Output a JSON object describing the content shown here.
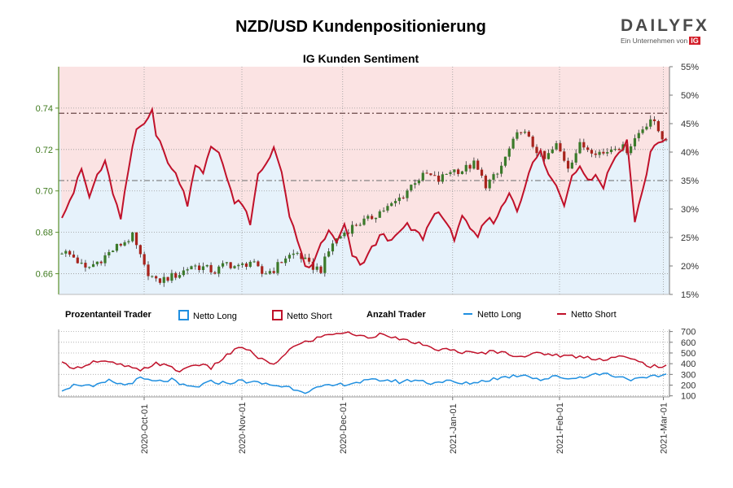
{
  "header": {
    "title": "NZD/USD Kundenpositionierung",
    "subtitle": "IG Kunden Sentiment",
    "logo_word": "DAILYFX",
    "logo_tagline": "Ein Unternehmen von",
    "logo_ig": "IG"
  },
  "legend": {
    "group1_title": "Prozentanteil Trader",
    "netto_long_pct": "Netto Long",
    "netto_short_pct": "Netto Short",
    "group2_title": "Anzahl Trader",
    "netto_long_count": "Netto Long",
    "netto_short_count": "Netto Short"
  },
  "colors": {
    "long": "#1f8fe0",
    "short": "#c0112a",
    "up_candle": "#3b7a2a",
    "down_candle": "#a8231c",
    "short_fill": "#fbe3e3",
    "long_fill": "#e6f2fb"
  },
  "chart_data": [
    {
      "type": "candlestick",
      "yaxis_left": {
        "ticks": [
          "0.66",
          "0.68",
          "0.70",
          "0.72",
          "0.74"
        ],
        "range": [
          0.65,
          0.76
        ]
      },
      "yaxis_right": {
        "ticks": [
          "15%",
          "20%",
          "25%",
          "30%",
          "35%",
          "40%",
          "45%",
          "50%",
          "55%"
        ],
        "range": [
          15,
          55
        ]
      },
      "x_tick_labels": [
        "2020-Oct-01",
        "2020-Nov-01",
        "2020-Dec-01",
        "2021-Jan-01",
        "2021-Feb-01",
        "2021-Mar-01"
      ],
      "reference_lines": {
        "price_level": 0.7375,
        "pct_level": 35
      },
      "price_anchors": [
        [
          0,
          0.671
        ],
        [
          3,
          0.668
        ],
        [
          6,
          0.662
        ],
        [
          10,
          0.667
        ],
        [
          14,
          0.673
        ],
        [
          18,
          0.678
        ],
        [
          21,
          0.663
        ],
        [
          24,
          0.656
        ],
        [
          27,
          0.658
        ],
        [
          30,
          0.66
        ],
        [
          33,
          0.664
        ],
        [
          36,
          0.663
        ],
        [
          39,
          0.661
        ],
        [
          42,
          0.665
        ],
        [
          45,
          0.663
        ],
        [
          48,
          0.666
        ],
        [
          51,
          0.66
        ],
        [
          54,
          0.662
        ],
        [
          57,
          0.668
        ],
        [
          60,
          0.67
        ],
        [
          63,
          0.664
        ],
        [
          66,
          0.662
        ],
        [
          69,
          0.675
        ],
        [
          72,
          0.68
        ],
        [
          75,
          0.684
        ],
        [
          78,
          0.686
        ],
        [
          81,
          0.69
        ],
        [
          84,
          0.693
        ],
        [
          87,
          0.698
        ],
        [
          90,
          0.705
        ],
        [
          93,
          0.708
        ],
        [
          96,
          0.705
        ],
        [
          99,
          0.71
        ],
        [
          102,
          0.71
        ],
        [
          105,
          0.713
        ],
        [
          108,
          0.703
        ],
        [
          111,
          0.708
        ],
        [
          114,
          0.72
        ],
        [
          117,
          0.73
        ],
        [
          120,
          0.722
        ],
        [
          123,
          0.715
        ],
        [
          126,
          0.722
        ],
        [
          129,
          0.712
        ],
        [
          132,
          0.722
        ],
        [
          135,
          0.72
        ],
        [
          138,
          0.718
        ],
        [
          141,
          0.722
        ],
        [
          144,
          0.72
        ],
        [
          147,
          0.728
        ],
        [
          150,
          0.735
        ],
        [
          153,
          0.726
        ],
        [
          154,
          0.726
        ]
      ],
      "pct_short_anchors": [
        [
          0,
          29
        ],
        [
          3,
          33
        ],
        [
          5,
          37
        ],
        [
          7,
          32
        ],
        [
          9,
          36
        ],
        [
          11,
          38
        ],
        [
          13,
          33
        ],
        [
          15,
          28
        ],
        [
          17,
          37
        ],
        [
          19,
          44
        ],
        [
          21,
          45
        ],
        [
          23,
          48
        ],
        [
          24,
          43
        ],
        [
          26,
          40
        ],
        [
          28,
          37
        ],
        [
          30,
          35
        ],
        [
          32,
          31
        ],
        [
          34,
          38
        ],
        [
          36,
          36
        ],
        [
          38,
          41
        ],
        [
          40,
          40
        ],
        [
          42,
          36
        ],
        [
          44,
          31
        ],
        [
          46,
          31
        ],
        [
          48,
          27
        ],
        [
          50,
          36
        ],
        [
          52,
          38
        ],
        [
          54,
          41
        ],
        [
          56,
          36
        ],
        [
          58,
          29
        ],
        [
          60,
          24
        ],
        [
          62,
          20
        ],
        [
          64,
          20
        ],
        [
          66,
          24
        ],
        [
          68,
          26
        ],
        [
          70,
          24
        ],
        [
          72,
          27
        ],
        [
          74,
          22
        ],
        [
          76,
          20
        ],
        [
          78,
          22
        ],
        [
          80,
          24
        ],
        [
          82,
          26
        ],
        [
          84,
          24
        ],
        [
          86,
          26
        ],
        [
          88,
          27
        ],
        [
          90,
          26
        ],
        [
          92,
          25
        ],
        [
          94,
          28
        ],
        [
          96,
          30
        ],
        [
          98,
          27
        ],
        [
          100,
          25
        ],
        [
          102,
          29
        ],
        [
          104,
          26
        ],
        [
          106,
          25
        ],
        [
          108,
          28
        ],
        [
          110,
          28
        ],
        [
          112,
          30
        ],
        [
          114,
          33
        ],
        [
          116,
          30
        ],
        [
          118,
          34
        ],
        [
          120,
          38
        ],
        [
          122,
          40
        ],
        [
          124,
          36
        ],
        [
          126,
          34
        ],
        [
          128,
          31
        ],
        [
          130,
          36
        ],
        [
          132,
          38
        ],
        [
          134,
          35
        ],
        [
          136,
          36
        ],
        [
          138,
          34
        ],
        [
          140,
          38
        ],
        [
          142,
          40
        ],
        [
          144,
          42
        ],
        [
          146,
          28
        ],
        [
          148,
          33
        ],
        [
          150,
          40
        ],
        [
          152,
          42
        ],
        [
          154,
          42
        ]
      ]
    },
    {
      "type": "line",
      "yaxis_right": {
        "ticks": [
          "100",
          "200",
          "300",
          "400",
          "500",
          "600",
          "700"
        ],
        "range": [
          90,
          720
        ]
      },
      "series": [
        {
          "name": "Netto Long",
          "anchors": [
            [
              0,
              160
            ],
            [
              4,
              210
            ],
            [
              8,
              180
            ],
            [
              12,
              240
            ],
            [
              16,
              200
            ],
            [
              20,
              260
            ],
            [
              24,
              230
            ],
            [
              28,
              250
            ],
            [
              30,
              200
            ],
            [
              34,
              180
            ],
            [
              38,
              230
            ],
            [
              42,
              220
            ],
            [
              46,
              240
            ],
            [
              50,
              220
            ],
            [
              54,
              200
            ],
            [
              58,
              180
            ],
            [
              62,
              140
            ],
            [
              66,
              180
            ],
            [
              70,
              200
            ],
            [
              74,
              220
            ],
            [
              78,
              240
            ],
            [
              82,
              250
            ],
            [
              86,
              230
            ],
            [
              90,
              250
            ],
            [
              94,
              220
            ],
            [
              98,
              240
            ],
            [
              102,
              210
            ],
            [
              106,
              230
            ],
            [
              110,
              260
            ],
            [
              114,
              280
            ],
            [
              118,
              300
            ],
            [
              122,
              250
            ],
            [
              126,
              280
            ],
            [
              130,
              260
            ],
            [
              134,
              290
            ],
            [
              138,
              310
            ],
            [
              142,
              280
            ],
            [
              146,
              250
            ],
            [
              150,
              270
            ],
            [
              154,
              300
            ]
          ]
        },
        {
          "name": "Netto Short",
          "anchors": [
            [
              0,
              400
            ],
            [
              4,
              360
            ],
            [
              8,
              420
            ],
            [
              12,
              410
            ],
            [
              16,
              380
            ],
            [
              20,
              330
            ],
            [
              24,
              410
            ],
            [
              28,
              360
            ],
            [
              30,
              330
            ],
            [
              34,
              400
            ],
            [
              38,
              360
            ],
            [
              42,
              480
            ],
            [
              46,
              560
            ],
            [
              50,
              460
            ],
            [
              54,
              380
            ],
            [
              58,
              540
            ],
            [
              62,
              600
            ],
            [
              66,
              650
            ],
            [
              70,
              690
            ],
            [
              74,
              680
            ],
            [
              78,
              640
            ],
            [
              82,
              690
            ],
            [
              86,
              620
            ],
            [
              90,
              600
            ],
            [
              94,
              540
            ],
            [
              98,
              530
            ],
            [
              102,
              510
            ],
            [
              106,
              490
            ],
            [
              110,
              520
            ],
            [
              114,
              490
            ],
            [
              118,
              470
            ],
            [
              122,
              500
            ],
            [
              126,
              480
            ],
            [
              130,
              470
            ],
            [
              134,
              460
            ],
            [
              138,
              440
            ],
            [
              142,
              470
            ],
            [
              146,
              430
            ],
            [
              150,
              380
            ],
            [
              154,
              370
            ]
          ]
        }
      ]
    }
  ]
}
